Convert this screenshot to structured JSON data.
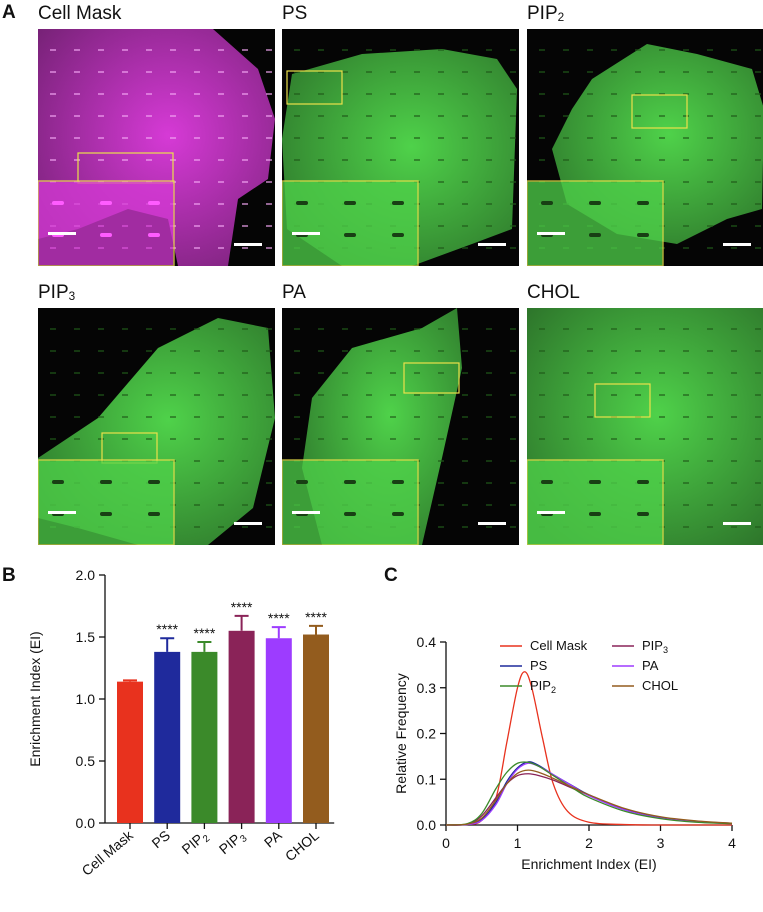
{
  "panels": {
    "a_label": "A",
    "b_label": "B",
    "c_label": "C"
  },
  "micrographs": [
    {
      "title": "Cell Mask",
      "tint": "#d63ad6"
    },
    {
      "title": "PS",
      "tint": "#4fd24a"
    },
    {
      "title": "PIP2",
      "tint": "#4fd24a"
    },
    {
      "title": "PIP3",
      "tint": "#4fd24a"
    },
    {
      "title": "PA",
      "tint": "#4fd24a"
    },
    {
      "title": "CHOL",
      "tint": "#4fd24a"
    }
  ],
  "chart_data": [
    {
      "type": "bar",
      "panel": "B",
      "categories": [
        "Cell Mask",
        "PS",
        "PIP2",
        "PIP3",
        "PA",
        "CHOL"
      ],
      "values": [
        1.14,
        1.38,
        1.38,
        1.55,
        1.49,
        1.52
      ],
      "errors": [
        0.01,
        0.11,
        0.08,
        0.12,
        0.09,
        0.07
      ],
      "significance": [
        "",
        "****",
        "****",
        "****",
        "****",
        "****"
      ],
      "colors": [
        "#e8321e",
        "#1f2a9c",
        "#3b8a2a",
        "#8a2358",
        "#9d3cff",
        "#935c1e"
      ],
      "ylabel": "Enrichment Index (EI)",
      "ylim": [
        0,
        2.0
      ],
      "yticks": [
        "0.0",
        "0.5",
        "1.0",
        "1.5",
        "2.0"
      ]
    },
    {
      "type": "line",
      "panel": "C",
      "xlabel": "Enrichment Index (EI)",
      "ylabel": "Relative Frequency",
      "xlim": [
        0,
        4
      ],
      "ylim": [
        0,
        0.4
      ],
      "xticks": [
        "0",
        "1",
        "2",
        "3",
        "4"
      ],
      "yticks": [
        "0.0",
        "0.1",
        "0.2",
        "0.3",
        "0.4"
      ],
      "legend_position": "top-right",
      "series": [
        {
          "name": "Cell Mask",
          "color": "#e8321e",
          "x": [
            0,
            0.3,
            0.5,
            0.7,
            0.85,
            1.0,
            1.1,
            1.2,
            1.35,
            1.5,
            1.7,
            2.0,
            2.5,
            3.0,
            4.0
          ],
          "values": [
            0,
            0.001,
            0.01,
            0.06,
            0.18,
            0.3,
            0.335,
            0.3,
            0.19,
            0.09,
            0.03,
            0.006,
            0.001,
            0,
            0
          ]
        },
        {
          "name": "PIP3",
          "color": "#8a2358",
          "x": [
            0,
            0.3,
            0.5,
            0.7,
            0.85,
            1.0,
            1.15,
            1.3,
            1.5,
            1.8,
            2.0,
            2.5,
            3.0,
            3.5,
            4.0
          ],
          "values": [
            0,
            0.002,
            0.02,
            0.06,
            0.09,
            0.108,
            0.112,
            0.108,
            0.098,
            0.078,
            0.065,
            0.035,
            0.017,
            0.008,
            0.003
          ]
        },
        {
          "name": "PS",
          "color": "#1f2a9c",
          "x": [
            0,
            0.3,
            0.5,
            0.7,
            0.85,
            1.0,
            1.15,
            1.3,
            1.5,
            1.8,
            2.0,
            2.5,
            3.0,
            3.5,
            4.0
          ],
          "values": [
            0,
            0.001,
            0.012,
            0.05,
            0.095,
            0.125,
            0.138,
            0.13,
            0.11,
            0.083,
            0.066,
            0.034,
            0.016,
            0.008,
            0.004
          ]
        },
        {
          "name": "PA",
          "color": "#9d3cff",
          "x": [
            0,
            0.3,
            0.5,
            0.7,
            0.85,
            1.0,
            1.15,
            1.3,
            1.5,
            1.8,
            2.0,
            2.5,
            3.0,
            3.5,
            4.0
          ],
          "values": [
            0,
            0.001,
            0.01,
            0.045,
            0.09,
            0.122,
            0.135,
            0.128,
            0.11,
            0.082,
            0.064,
            0.033,
            0.015,
            0.007,
            0.003
          ]
        },
        {
          "name": "PIP2",
          "color": "#3b8a2a",
          "x": [
            0,
            0.3,
            0.5,
            0.7,
            0.85,
            1.0,
            1.15,
            1.3,
            1.5,
            1.8,
            2.0,
            2.5,
            3.0,
            3.5,
            4.0
          ],
          "values": [
            0,
            0.003,
            0.025,
            0.08,
            0.115,
            0.135,
            0.137,
            0.128,
            0.108,
            0.078,
            0.06,
            0.03,
            0.014,
            0.006,
            0.003
          ]
        },
        {
          "name": "CHOL",
          "color": "#935c1e",
          "x": [
            0,
            0.3,
            0.5,
            0.7,
            0.85,
            1.0,
            1.15,
            1.3,
            1.5,
            1.8,
            2.0,
            2.5,
            3.0,
            3.5,
            4.0
          ],
          "values": [
            0,
            0.002,
            0.015,
            0.055,
            0.09,
            0.113,
            0.12,
            0.115,
            0.102,
            0.08,
            0.066,
            0.036,
            0.018,
            0.009,
            0.004
          ]
        }
      ]
    }
  ]
}
